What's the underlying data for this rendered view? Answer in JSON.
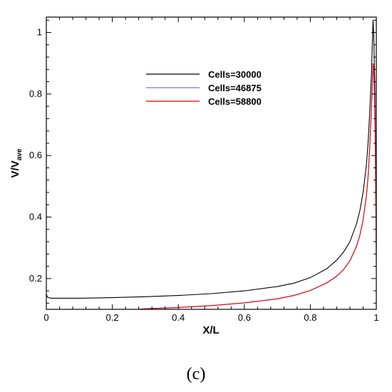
{
  "panel_label": "(c)",
  "chart_data": {
    "type": "line",
    "title": "",
    "xlabel": "X/L",
    "ylabel_main": "V/V",
    "ylabel_sub": "ave",
    "xlim": [
      0,
      1
    ],
    "ylim": [
      0.1,
      1.05
    ],
    "xticks": [
      0,
      0.2,
      0.4,
      0.6,
      0.8,
      1
    ],
    "xtick_labels": [
      "0",
      "0.2",
      "0.4",
      "0.6",
      "0.8",
      "1"
    ],
    "yticks": [
      0.2,
      0.4,
      0.6,
      0.8,
      1
    ],
    "ytick_labels": [
      "0.2",
      "0.4",
      "0.6",
      "0.8",
      "1"
    ],
    "grid": false,
    "legend_position": "top-center",
    "series": [
      {
        "name": "Cells=30000",
        "color": "#000000",
        "x": [
          0,
          0.003,
          0.01,
          0.02,
          0.1,
          0.2,
          0.3,
          0.4,
          0.5,
          0.6,
          0.7,
          0.75,
          0.8,
          0.85,
          0.88,
          0.9,
          0.92,
          0.94,
          0.95,
          0.96,
          0.97,
          0.975,
          0.98,
          0.985,
          0.99,
          0.992,
          0.995,
          0.998,
          1.0
        ],
        "y": [
          0.15,
          0.14,
          0.137,
          0.136,
          0.136,
          0.138,
          0.141,
          0.145,
          0.151,
          0.16,
          0.174,
          0.185,
          0.203,
          0.232,
          0.26,
          0.285,
          0.32,
          0.378,
          0.42,
          0.48,
          0.57,
          0.64,
          0.74,
          0.86,
          1.04,
          1.0,
          0.85,
          0.6,
          0.25
        ]
      },
      {
        "name": "Cells=46875",
        "color": "#7777dd",
        "x": [
          0.28,
          0.3,
          0.4,
          0.5,
          0.6,
          0.7,
          0.75,
          0.8,
          0.85,
          0.88,
          0.9,
          0.92,
          0.94,
          0.95,
          0.96,
          0.97,
          0.975,
          0.98,
          0.985,
          0.99,
          0.992,
          0.995,
          0.998,
          1.0
        ],
        "y": [
          0.1,
          0.102,
          0.106,
          0.112,
          0.121,
          0.134,
          0.145,
          0.161,
          0.186,
          0.208,
          0.228,
          0.258,
          0.305,
          0.34,
          0.39,
          0.47,
          0.53,
          0.62,
          0.74,
          0.88,
          0.87,
          0.75,
          0.6,
          0.44
        ]
      },
      {
        "name": "Cells=58800",
        "color": "#e00000",
        "x": [
          0.28,
          0.3,
          0.4,
          0.5,
          0.6,
          0.7,
          0.75,
          0.8,
          0.85,
          0.88,
          0.9,
          0.92,
          0.94,
          0.95,
          0.96,
          0.97,
          0.975,
          0.98,
          0.985,
          0.99,
          0.993,
          0.996,
          0.998,
          1.0
        ],
        "y": [
          0.1,
          0.102,
          0.106,
          0.112,
          0.121,
          0.134,
          0.145,
          0.161,
          0.186,
          0.208,
          0.228,
          0.258,
          0.305,
          0.34,
          0.39,
          0.47,
          0.53,
          0.63,
          0.75,
          0.9,
          0.88,
          0.72,
          0.5,
          0.28
        ]
      }
    ]
  }
}
